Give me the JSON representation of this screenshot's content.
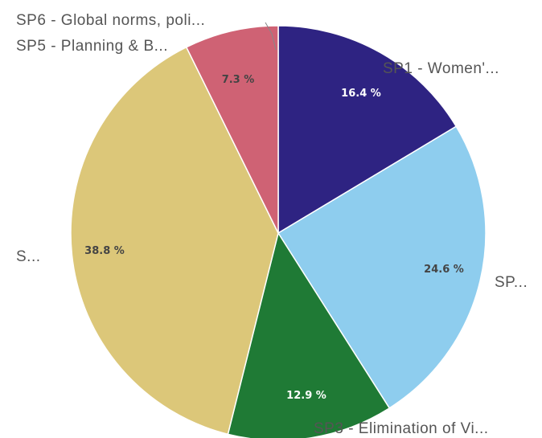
{
  "chart_data": {
    "type": "pie",
    "slices": [
      {
        "label": "SP1 - Women'...",
        "value": 16.4,
        "value_label": "16.4 %",
        "color": "#2e2382",
        "label_color": "#ffffff"
      },
      {
        "label": "SP...",
        "value": 24.6,
        "value_label": "24.6 %",
        "color": "#8ecdee",
        "label_color": "#444444"
      },
      {
        "label": "SP3 - Elimination of Vi...",
        "value": 12.9,
        "value_label": "12.9 %",
        "color": "#1f7a35",
        "label_color": "#ffffff"
      },
      {
        "label": "S...",
        "value": 38.8,
        "value_label": "38.8 %",
        "color": "#dcc779",
        "label_color": "#444444"
      },
      {
        "label": "SP5 - Planning & B...",
        "value": 7.3,
        "value_label": "7.3 %",
        "color": "#cf6274",
        "label_color": "#444444"
      },
      {
        "label": "SP6 - Global norms, poli...",
        "value": 0.0,
        "value_label": "",
        "color": "#7a7a7a",
        "label_color": "#444444"
      }
    ],
    "start_angle": "12 o'clock",
    "direction": "clockwise",
    "legend": "none"
  }
}
